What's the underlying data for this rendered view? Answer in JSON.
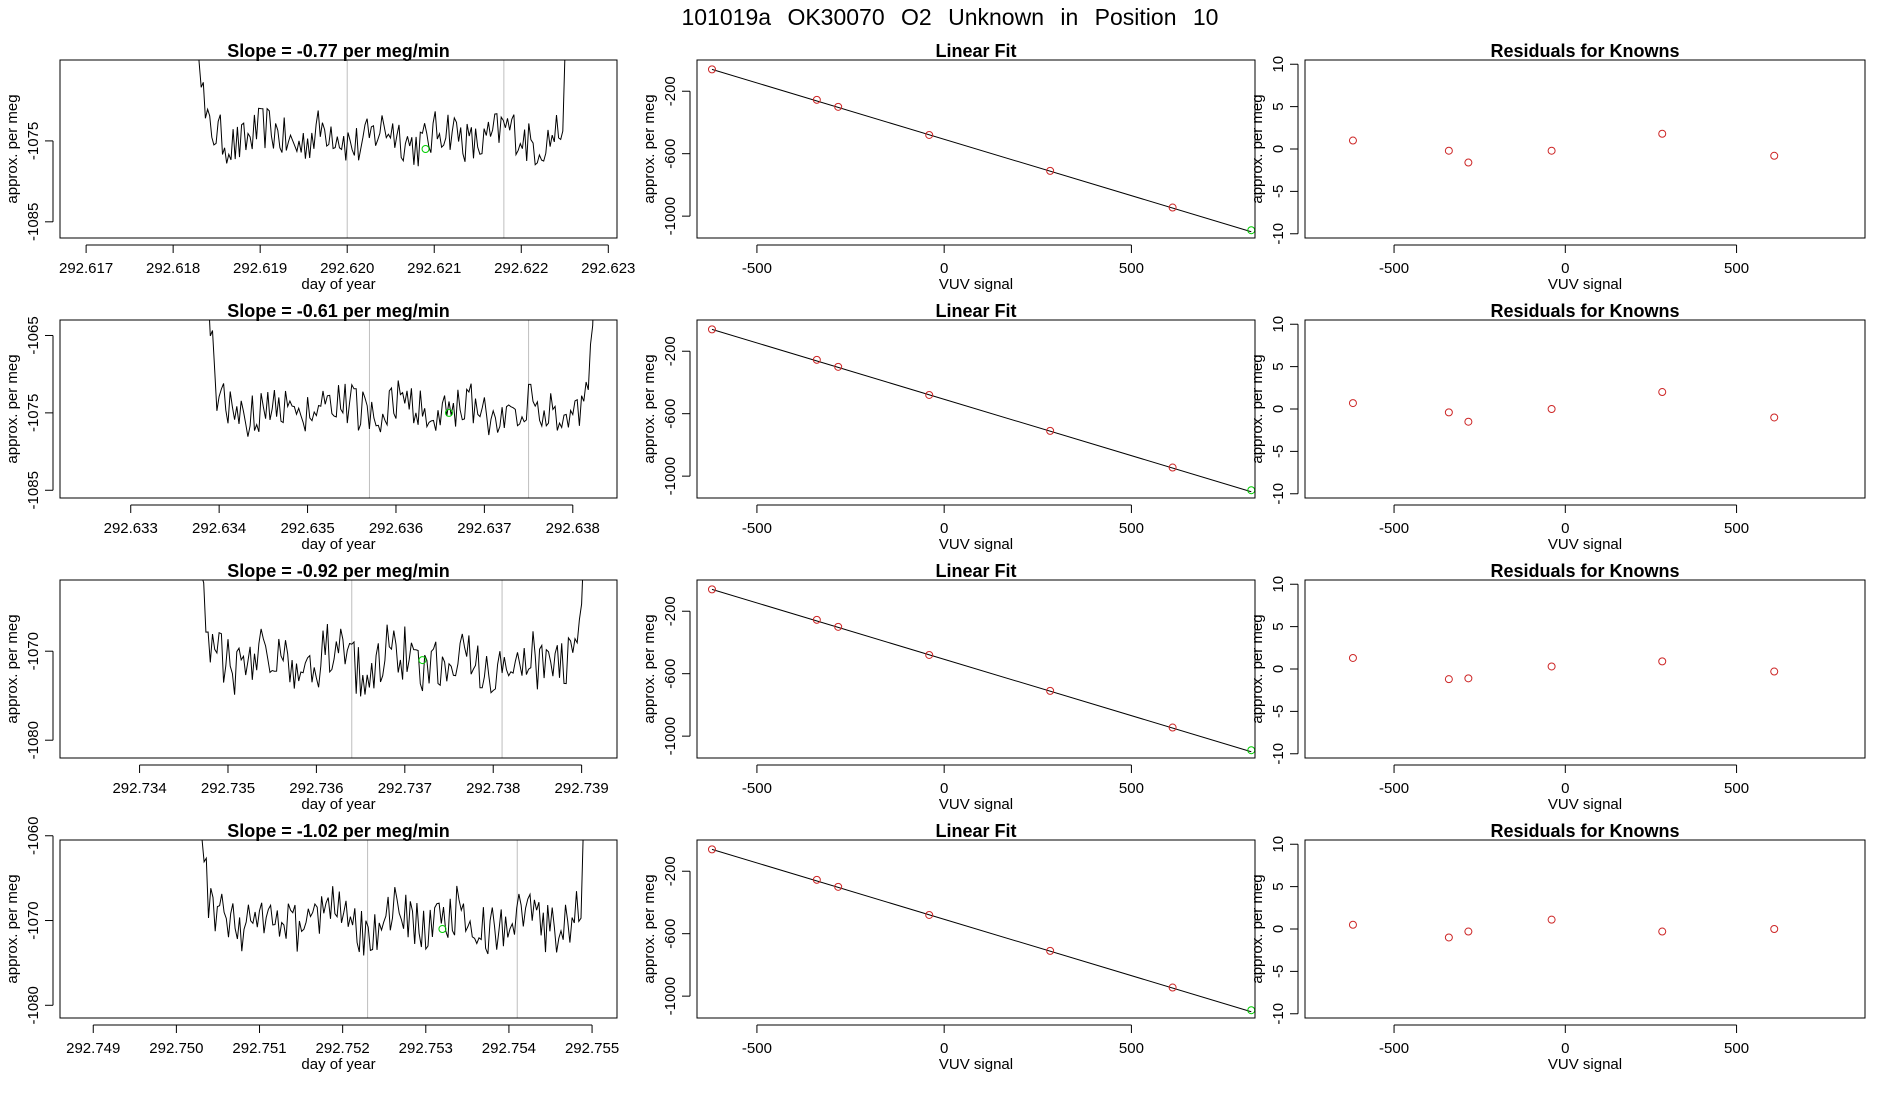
{
  "page": {
    "title": "101019a     OK30070    O2 Unknown in Position  10"
  },
  "colors": {
    "line": "#000000",
    "known": "#cd2626",
    "unknown": "#00cd00",
    "grid": "#bebebe"
  },
  "chart_data": [
    {
      "type": "line",
      "panel": "time-series",
      "row": 0,
      "title": "Slope =  -0.77  per meg/min",
      "xlabel": "day of year",
      "ylabel": "approx. per meg",
      "xlim": [
        292.6167,
        292.6231
      ],
      "ylim": [
        -1087,
        -1065
      ],
      "xticks": [
        292.617,
        292.618,
        292.619,
        292.62,
        292.621,
        292.622,
        292.623
      ],
      "xtick_labels": [
        "292.617",
        "292.618",
        "292.619",
        "292.620",
        "292.621",
        "292.622",
        "292.623"
      ],
      "yticks": [
        -1085,
        -1075
      ],
      "ytick_labels": [
        "-1085",
        "-1075"
      ],
      "vlines": [
        292.62,
        292.6218
      ],
      "series_x_range": [
        292.6182,
        292.6226
      ],
      "series_baseline": -1074.5,
      "series_amplitude": 2.8,
      "unknown_point": {
        "x": 292.6209,
        "y": -1076
      }
    },
    {
      "type": "scatter",
      "panel": "linear-fit",
      "row": 0,
      "title": "Linear Fit",
      "xlabel": "VUV signal",
      "ylabel": "approx. per meg",
      "xlim": [
        -660,
        830
      ],
      "ylim": [
        -1140,
        0
      ],
      "xticks": [
        -500,
        0,
        500
      ],
      "xtick_labels": [
        "-500",
        "0",
        "500"
      ],
      "yticks": [
        -1000,
        -600,
        -200
      ],
      "ytick_labels": [
        "-1000",
        "-600",
        "-200"
      ],
      "fit_line": [
        {
          "x": -620,
          "y": -60
        },
        {
          "x": 820,
          "y": -1100
        }
      ],
      "known_points": [
        {
          "x": -620,
          "y": -60
        },
        {
          "x": -340,
          "y": -255
        },
        {
          "x": -283,
          "y": -300
        },
        {
          "x": -40,
          "y": -480
        },
        {
          "x": 283,
          "y": -710
        },
        {
          "x": 610,
          "y": -945
        }
      ],
      "unknown_point": {
        "x": 820,
        "y": -1090
      }
    },
    {
      "type": "scatter",
      "panel": "residuals",
      "row": 0,
      "title": "Residuals for Knowns",
      "xlabel": "VUV signal",
      "ylabel": "approx. per meg",
      "xlim": [
        -760,
        875
      ],
      "ylim": [
        -10.5,
        10.5
      ],
      "xticks": [
        -500,
        0,
        500
      ],
      "xtick_labels": [
        "-500",
        "0",
        "500"
      ],
      "yticks": [
        -10,
        -5,
        0,
        5,
        10
      ],
      "ytick_labels": [
        "-10",
        "-5",
        "0",
        "5",
        "10"
      ],
      "points": [
        {
          "x": -620,
          "y": 1.0
        },
        {
          "x": -340,
          "y": -0.2
        },
        {
          "x": -283,
          "y": -1.6
        },
        {
          "x": -40,
          "y": -0.2
        },
        {
          "x": 283,
          "y": 1.8
        },
        {
          "x": 610,
          "y": -0.8
        }
      ]
    },
    {
      "type": "line",
      "panel": "time-series",
      "row": 1,
      "title": "Slope =  -0.61  per meg/min",
      "xlabel": "day of year",
      "ylabel": "approx. per meg",
      "xlim": [
        292.6322,
        292.6385
      ],
      "ylim": [
        -1086,
        -1063
      ],
      "xticks": [
        292.633,
        292.634,
        292.635,
        292.636,
        292.637,
        292.638
      ],
      "xtick_labels": [
        "292.633",
        "292.634",
        "292.635",
        "292.636",
        "292.637",
        "292.638"
      ],
      "yticks": [
        -1085,
        -1075,
        -1065
      ],
      "ytick_labels": [
        "-1085",
        "-1075",
        "-1065"
      ],
      "vlines": [
        292.6357,
        292.6375
      ],
      "series_x_range": [
        292.6338,
        292.6383
      ],
      "series_baseline": -1074.5,
      "series_amplitude": 2.8,
      "unknown_point": {
        "x": 292.6366,
        "y": -1075
      }
    },
    {
      "type": "scatter",
      "panel": "linear-fit",
      "row": 1,
      "title": "Linear Fit",
      "xlabel": "VUV signal",
      "ylabel": "approx. per meg",
      "xlim": [
        -660,
        830
      ],
      "ylim": [
        -1140,
        0
      ],
      "xticks": [
        -500,
        0,
        500
      ],
      "xtick_labels": [
        "-500",
        "0",
        "500"
      ],
      "yticks": [
        -1000,
        -600,
        -200
      ],
      "ytick_labels": [
        "-1000",
        "-600",
        "-200"
      ],
      "fit_line": [
        {
          "x": -620,
          "y": -60
        },
        {
          "x": 820,
          "y": -1100
        }
      ],
      "known_points": [
        {
          "x": -620,
          "y": -60
        },
        {
          "x": -340,
          "y": -255
        },
        {
          "x": -283,
          "y": -300
        },
        {
          "x": -40,
          "y": -480
        },
        {
          "x": 283,
          "y": -710
        },
        {
          "x": 610,
          "y": -945
        }
      ],
      "unknown_point": {
        "x": 820,
        "y": -1090
      }
    },
    {
      "type": "scatter",
      "panel": "residuals",
      "row": 1,
      "title": "Residuals for Knowns",
      "xlabel": "VUV signal",
      "ylabel": "approx. per meg",
      "xlim": [
        -760,
        875
      ],
      "ylim": [
        -10.5,
        10.5
      ],
      "xticks": [
        -500,
        0,
        500
      ],
      "xtick_labels": [
        "-500",
        "0",
        "500"
      ],
      "yticks": [
        -10,
        -5,
        0,
        5,
        10
      ],
      "ytick_labels": [
        "-10",
        "-5",
        "0",
        "5",
        "10"
      ],
      "points": [
        {
          "x": -620,
          "y": 0.7
        },
        {
          "x": -340,
          "y": -0.4
        },
        {
          "x": -283,
          "y": -1.5
        },
        {
          "x": -40,
          "y": 0.0
        },
        {
          "x": 283,
          "y": 2.0
        },
        {
          "x": 610,
          "y": -1.0
        }
      ]
    },
    {
      "type": "line",
      "panel": "time-series",
      "row": 2,
      "title": "Slope =  -0.92  per meg/min",
      "xlabel": "day of year",
      "ylabel": "approx. per meg",
      "xlim": [
        292.7331,
        292.7394
      ],
      "ylim": [
        -1082,
        -1062
      ],
      "xticks": [
        292.734,
        292.735,
        292.736,
        292.737,
        292.738,
        292.739
      ],
      "xtick_labels": [
        "292.734",
        "292.735",
        "292.736",
        "292.737",
        "292.738",
        "292.739"
      ],
      "yticks": [
        -1080,
        -1070
      ],
      "ytick_labels": [
        "-1080",
        "-1070"
      ],
      "vlines": [
        292.7364,
        292.7381
      ],
      "series_x_range": [
        292.7346,
        292.7391
      ],
      "series_baseline": -1071,
      "series_amplitude": 3.2,
      "unknown_point": {
        "x": 292.7372,
        "y": -1071
      }
    },
    {
      "type": "scatter",
      "panel": "linear-fit",
      "row": 2,
      "title": "Linear Fit",
      "xlabel": "VUV signal",
      "ylabel": "approx. per meg",
      "xlim": [
        -660,
        830
      ],
      "ylim": [
        -1140,
        0
      ],
      "xticks": [
        -500,
        0,
        500
      ],
      "xtick_labels": [
        "-500",
        "0",
        "500"
      ],
      "yticks": [
        -1000,
        -600,
        -200
      ],
      "ytick_labels": [
        "-1000",
        "-600",
        "-200"
      ],
      "fit_line": [
        {
          "x": -620,
          "y": -60
        },
        {
          "x": 820,
          "y": -1100
        }
      ],
      "known_points": [
        {
          "x": -620,
          "y": -60
        },
        {
          "x": -340,
          "y": -255
        },
        {
          "x": -283,
          "y": -300
        },
        {
          "x": -40,
          "y": -480
        },
        {
          "x": 283,
          "y": -710
        },
        {
          "x": 610,
          "y": -945
        }
      ],
      "unknown_point": {
        "x": 820,
        "y": -1090
      }
    },
    {
      "type": "scatter",
      "panel": "residuals",
      "row": 2,
      "title": "Residuals for Knowns",
      "xlabel": "VUV signal",
      "ylabel": "approx. per meg",
      "xlim": [
        -760,
        875
      ],
      "ylim": [
        -10.5,
        10.5
      ],
      "xticks": [
        -500,
        0,
        500
      ],
      "xtick_labels": [
        "-500",
        "0",
        "500"
      ],
      "yticks": [
        -10,
        -5,
        0,
        5,
        10
      ],
      "ytick_labels": [
        "-10",
        "-5",
        "0",
        "5",
        "10"
      ],
      "points": [
        {
          "x": -620,
          "y": 1.3
        },
        {
          "x": -340,
          "y": -1.2
        },
        {
          "x": -283,
          "y": -1.1
        },
        {
          "x": -40,
          "y": 0.3
        },
        {
          "x": 283,
          "y": 0.9
        },
        {
          "x": 610,
          "y": -0.3
        }
      ]
    },
    {
      "type": "line",
      "panel": "time-series",
      "row": 3,
      "title": "Slope =  -1.02  per meg/min",
      "xlabel": "day of year",
      "ylabel": "approx. per meg",
      "xlim": [
        292.7486,
        292.7553
      ],
      "ylim": [
        -1081.5,
        -1060.5
      ],
      "xticks": [
        292.749,
        292.75,
        292.751,
        292.752,
        292.753,
        292.754,
        292.755
      ],
      "xtick_labels": [
        "292.749",
        "292.750",
        "292.751",
        "292.752",
        "292.753",
        "292.754",
        "292.755"
      ],
      "yticks": [
        -1080,
        -1070,
        -1060
      ],
      "ytick_labels": [
        "-1080",
        "-1070",
        "-1060"
      ],
      "vlines": [
        292.7523,
        292.7541
      ],
      "series_x_range": [
        292.7502,
        292.755
      ],
      "series_baseline": -1070,
      "series_amplitude": 3.0,
      "unknown_point": {
        "x": 292.7532,
        "y": -1071
      }
    },
    {
      "type": "scatter",
      "panel": "linear-fit",
      "row": 3,
      "title": "Linear Fit",
      "xlabel": "VUV signal",
      "ylabel": "approx. per meg",
      "xlim": [
        -660,
        830
      ],
      "ylim": [
        -1140,
        0
      ],
      "xticks": [
        -500,
        0,
        500
      ],
      "xtick_labels": [
        "-500",
        "0",
        "500"
      ],
      "yticks": [
        -1000,
        -600,
        -200
      ],
      "ytick_labels": [
        "-1000",
        "-600",
        "-200"
      ],
      "fit_line": [
        {
          "x": -620,
          "y": -60
        },
        {
          "x": 820,
          "y": -1100
        }
      ],
      "known_points": [
        {
          "x": -620,
          "y": -60
        },
        {
          "x": -340,
          "y": -255
        },
        {
          "x": -283,
          "y": -300
        },
        {
          "x": -40,
          "y": -480
        },
        {
          "x": 283,
          "y": -710
        },
        {
          "x": 610,
          "y": -945
        }
      ],
      "unknown_point": {
        "x": 820,
        "y": -1090
      }
    },
    {
      "type": "scatter",
      "panel": "residuals",
      "row": 3,
      "title": "Residuals for Knowns",
      "xlabel": "VUV signal",
      "ylabel": "approx. per meg",
      "xlim": [
        -760,
        875
      ],
      "ylim": [
        -10.5,
        10.5
      ],
      "xticks": [
        -500,
        0,
        500
      ],
      "xtick_labels": [
        "-500",
        "0",
        "500"
      ],
      "yticks": [
        -10,
        -5,
        0,
        5,
        10
      ],
      "ytick_labels": [
        "-10",
        "-5",
        "0",
        "5",
        "10"
      ],
      "points": [
        {
          "x": -620,
          "y": 0.5
        },
        {
          "x": -340,
          "y": -1.0
        },
        {
          "x": -283,
          "y": -0.3
        },
        {
          "x": -40,
          "y": 1.1
        },
        {
          "x": 283,
          "y": -0.3
        },
        {
          "x": 610,
          "y": 0.0
        }
      ]
    }
  ]
}
